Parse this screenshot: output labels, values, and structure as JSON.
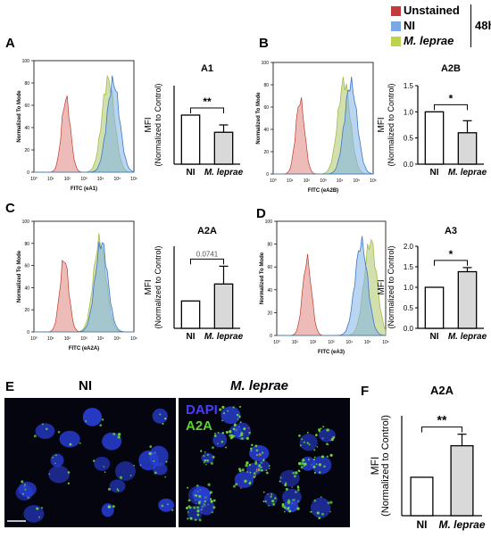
{
  "legend": {
    "items": [
      {
        "label": "Unstained",
        "color": "#c23a3a",
        "italic": false
      },
      {
        "label": "NI",
        "color": "#7aa7e6",
        "italic": false
      },
      {
        "label": "M. leprae",
        "color": "#bcd34a",
        "italic": true
      }
    ],
    "group_label": "48h"
  },
  "panel_letters": {
    "a": "A",
    "b": "B",
    "c": "C",
    "d": "D",
    "e": "E",
    "f": "F"
  },
  "colors": {
    "unstained": "#e7a5a0",
    "ni": "#7fb3e8",
    "mlep": "#bdd38a",
    "bar_ni": "#ffffff",
    "bar_mlep": "#d9d9d9"
  },
  "histograms": {
    "y_label": "Normalized To Mode",
    "yticks": [
      "0",
      "20",
      "40",
      "60",
      "80",
      "100"
    ],
    "xticks": [
      "10⁰",
      "10¹",
      "10²",
      "10³",
      "10⁴",
      "10⁵",
      "10⁶"
    ],
    "a_xlabel": "FITC (eA1)",
    "b_xlabel": "FITC (eA2B)",
    "c_xlabel": "FITC (eA2A)",
    "d_xlabel": "FITC (eA3)"
  },
  "micrograph": {
    "ni_label": "NI",
    "mlep_label": "M. leprae",
    "dapi_label": "DAPI",
    "a2a_label": "A2A"
  },
  "chart_data": [
    {
      "type": "bar",
      "title": "A1",
      "categories": [
        "NI",
        "M. leprae"
      ],
      "values": [
        1.0,
        0.65
      ],
      "errors": [
        0,
        0.15
      ],
      "ylabel": "MFI",
      "ylabel2": "(Normalized to Control)",
      "significance": "**",
      "yticks": [],
      "ylim": [
        0,
        1.6
      ]
    },
    {
      "type": "bar",
      "title": "A2B",
      "categories": [
        "NI",
        "M. leprae"
      ],
      "values": [
        1.0,
        0.6
      ],
      "errors": [
        0,
        0.23
      ],
      "ylabel": "MFI",
      "ylabel2": "(Normalized to Control)",
      "significance": "*",
      "yticks": [
        "0.0",
        "0.5",
        "1.0",
        "1.5"
      ],
      "ylim": [
        0,
        1.5
      ]
    },
    {
      "type": "bar",
      "title": "A2A",
      "categories": [
        "NI",
        "M. leprae"
      ],
      "values": [
        1.0,
        1.62
      ],
      "errors": [
        0,
        0.65
      ],
      "ylabel": "MFI",
      "ylabel2": "(Normalized to Control)",
      "significance": "0.0741",
      "yticks": [],
      "ylim": [
        0,
        3.0
      ]
    },
    {
      "type": "bar",
      "title": "A3",
      "categories": [
        "NI",
        "M. leprae"
      ],
      "values": [
        1.0,
        1.38
      ],
      "errors": [
        0,
        0.1
      ],
      "ylabel": "MFI",
      "ylabel2": "(Normalized to Control)",
      "significance": "*",
      "yticks": [
        "0.0",
        "0.5",
        "1.0",
        "1.5",
        "2.0"
      ],
      "ylim": [
        0,
        2.0
      ]
    },
    {
      "type": "bar",
      "title": "A2A",
      "categories": [
        "NI",
        "M. leprae"
      ],
      "values": [
        1.0,
        1.82
      ],
      "errors": [
        0,
        0.3
      ],
      "ylabel": "MFI",
      "ylabel2": "(Normalized to Control)",
      "significance": "**",
      "yticks": [],
      "ylim": [
        0,
        2.6
      ]
    }
  ]
}
